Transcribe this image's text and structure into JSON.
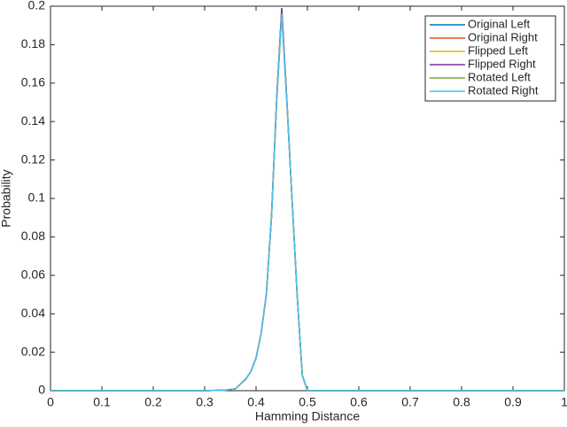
{
  "chart_data": {
    "type": "line",
    "x_label": "Hamming Distance",
    "y_label": "Probability",
    "x": [
      0,
      0.3,
      0.34,
      0.36,
      0.38,
      0.39,
      0.4,
      0.41,
      0.42,
      0.43,
      0.44,
      0.45,
      0.46,
      0.47,
      0.48,
      0.49,
      0.5,
      1
    ],
    "series": [
      {
        "name": "Original Left",
        "color": "#0072bd",
        "values": [
          0,
          0,
          0.0003,
          0.001,
          0.006,
          0.01,
          0.017,
          0.03,
          0.05,
          0.09,
          0.15,
          0.197,
          0.15,
          0.1,
          0.05,
          0.008,
          0,
          0
        ]
      },
      {
        "name": "Original Right",
        "color": "#d95319",
        "values": [
          0,
          0,
          0.0003,
          0.001,
          0.006,
          0.01,
          0.017,
          0.03,
          0.05,
          0.09,
          0.151,
          0.199,
          0.151,
          0.1,
          0.05,
          0.008,
          0,
          0
        ]
      },
      {
        "name": "Flipped Left",
        "color": "#edb120",
        "values": [
          0,
          0,
          0.0003,
          0.001,
          0.006,
          0.01,
          0.017,
          0.03,
          0.05,
          0.09,
          0.15,
          0.198,
          0.15,
          0.1,
          0.05,
          0.008,
          0,
          0
        ]
      },
      {
        "name": "Flipped Right",
        "color": "#7e2f8e",
        "values": [
          0,
          0,
          0.0003,
          0.001,
          0.006,
          0.01,
          0.017,
          0.03,
          0.05,
          0.09,
          0.151,
          0.199,
          0.151,
          0.1,
          0.05,
          0.008,
          0,
          0
        ]
      },
      {
        "name": "Rotated Left",
        "color": "#77ac30",
        "values": [
          0,
          0,
          0.0003,
          0.001,
          0.006,
          0.01,
          0.017,
          0.03,
          0.05,
          0.09,
          0.15,
          0.196,
          0.15,
          0.1,
          0.05,
          0.008,
          0,
          0
        ]
      },
      {
        "name": "Rotated Right",
        "color": "#4dbeee",
        "values": [
          0,
          0,
          0.0003,
          0.001,
          0.006,
          0.01,
          0.017,
          0.03,
          0.05,
          0.09,
          0.15,
          0.196,
          0.15,
          0.1,
          0.05,
          0.008,
          0,
          0
        ]
      }
    ],
    "xlim": [
      0,
      1
    ],
    "xticks": [
      0,
      0.1,
      0.2,
      0.3,
      0.4,
      0.5,
      0.6,
      0.7,
      0.8,
      0.9,
      1
    ],
    "ylim": [
      0,
      0.2
    ],
    "yticks": [
      0,
      0.02,
      0.04,
      0.06,
      0.08,
      0.1,
      0.12,
      0.14,
      0.16,
      0.18,
      0.2
    ],
    "grid": false,
    "legend": "top-right"
  }
}
